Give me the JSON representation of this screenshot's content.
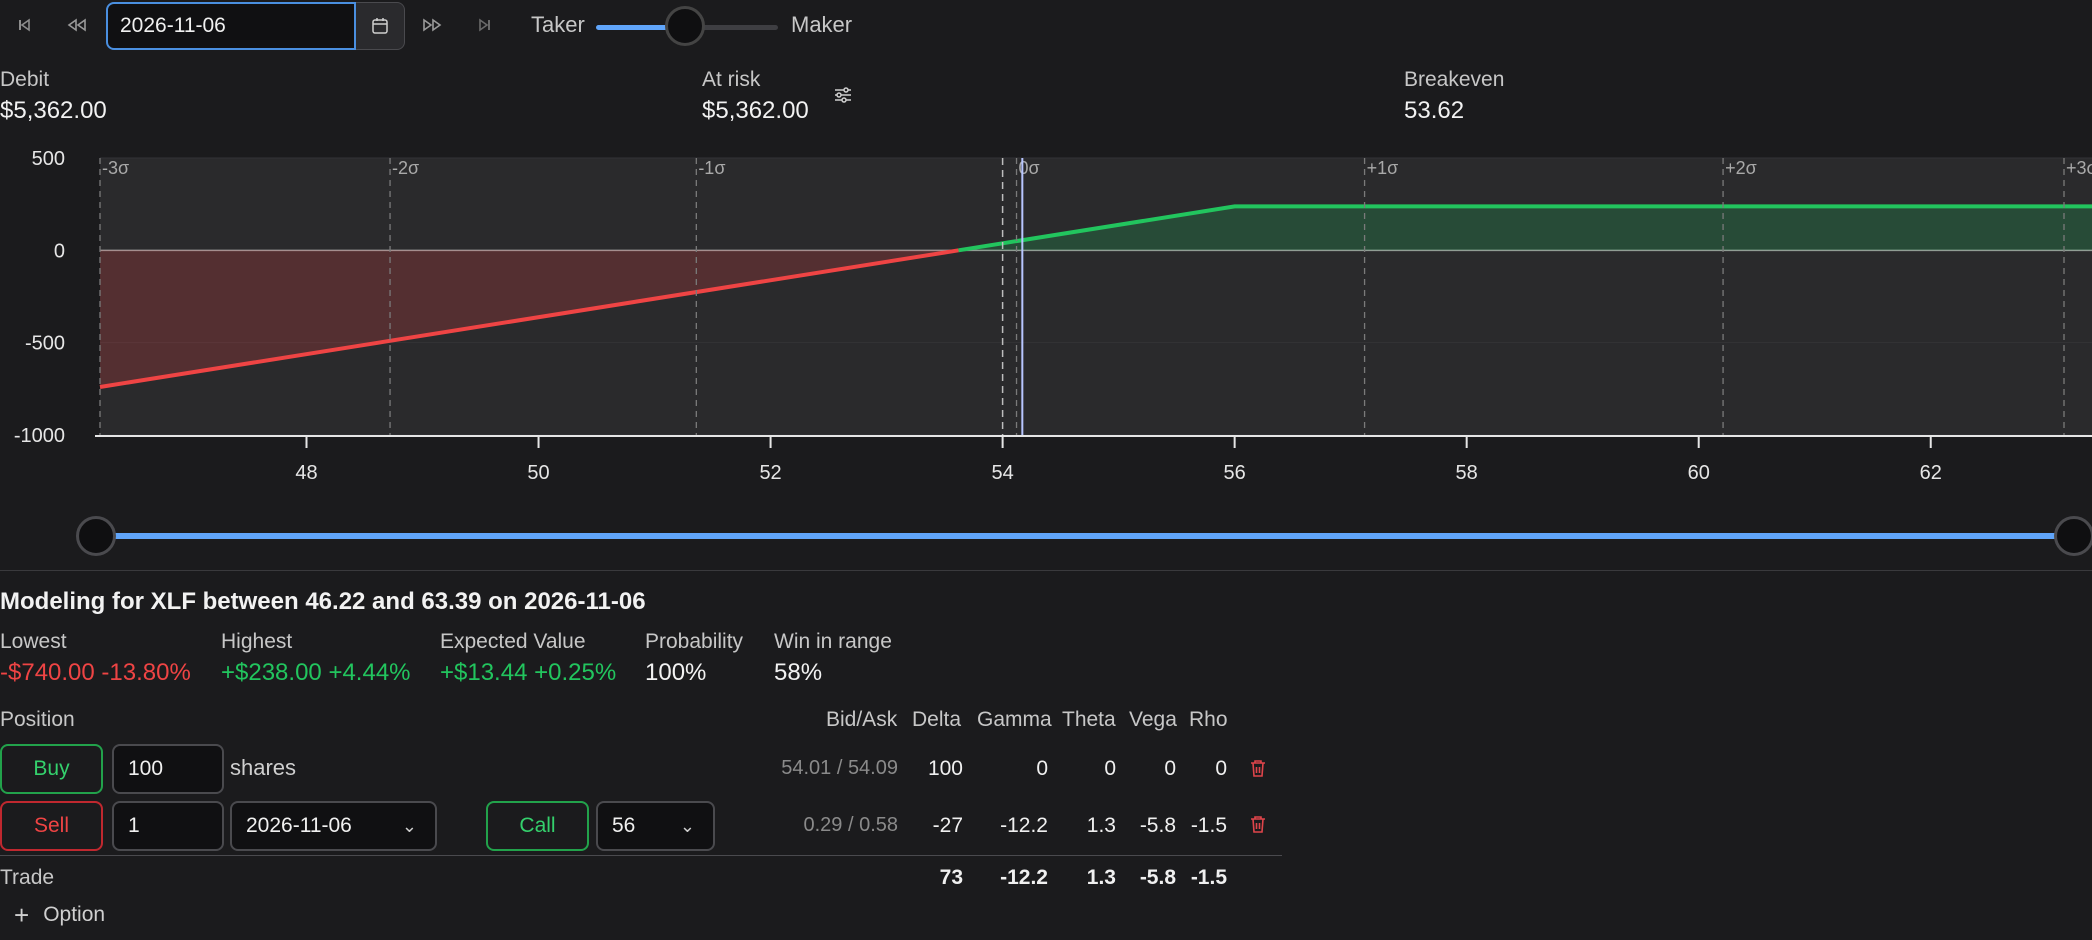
{
  "toolbar": {
    "date": "2026-11-06",
    "slider_left_label": "Taker",
    "slider_right_label": "Maker",
    "slider_value": 0.5
  },
  "summary": {
    "debit_label": "Debit",
    "debit_value": "$5,362.00",
    "at_risk_label": "At risk",
    "at_risk_value": "$5,362.00",
    "breakeven_label": "Breakeven",
    "breakeven_value": "53.62"
  },
  "chart_data": {
    "type": "area",
    "xlim": [
      46.22,
      63.39
    ],
    "ylim": [
      -1000,
      500
    ],
    "y_ticks": [
      500,
      0,
      -500,
      -1000
    ],
    "x_ticks": [
      48,
      50,
      52,
      54,
      56,
      58,
      60,
      62
    ],
    "sigma_labels": [
      "-3σ",
      "-2σ",
      "-1σ",
      "0σ",
      "+1σ",
      "+2σ",
      "+3σ"
    ],
    "sigma_x": [
      46.22,
      48.72,
      51.36,
      54.12,
      57.12,
      60.21,
      63.39
    ],
    "current_price": 54.17,
    "breakeven": 53.62,
    "series": [
      {
        "values": [
          [
            46.22,
            -740
          ],
          [
            53.62,
            0
          ],
          [
            56,
            238
          ],
          [
            63.39,
            238
          ]
        ]
      }
    ],
    "colors": {
      "profit": "#22c55e",
      "loss": "#ef4444"
    }
  },
  "range": {
    "low": 46.22,
    "high": 63.39
  },
  "modeling": {
    "title": "Modeling for XLF between 46.22 and 63.39 on 2026-11-06",
    "lowest_label": "Lowest",
    "lowest_value": "-$740.00 -13.80%",
    "highest_label": "Highest",
    "highest_value": "+$238.00 +4.44%",
    "ev_label": "Expected Value",
    "ev_value": "+$13.44 +0.25%",
    "prob_label": "Probability",
    "prob_value": "100%",
    "win_label": "Win in range",
    "win_value": "58%"
  },
  "positions": {
    "header_position": "Position",
    "headers": [
      "Bid/Ask",
      "Delta",
      "Gamma",
      "Theta",
      "Vega",
      "Rho"
    ],
    "rows": [
      {
        "side": "Buy",
        "qty": "100",
        "unit": "shares",
        "bidask": "54.01 / 54.09",
        "delta": "100",
        "gamma": "0",
        "theta": "0",
        "vega": "0",
        "rho": "0"
      },
      {
        "side": "Sell",
        "qty": "1",
        "expiry": "2026-11-06",
        "type": "Call",
        "strike": "56",
        "bidask": "0.29 / 0.58",
        "delta": "-27",
        "gamma": "-12.2",
        "theta": "1.3",
        "vega": "-5.8",
        "rho": "-1.5"
      }
    ],
    "total": {
      "label": "Trade",
      "delta": "73",
      "gamma": "-12.2",
      "theta": "1.3",
      "vega": "-5.8",
      "rho": "-1.5"
    },
    "add_option_label": "Option"
  }
}
